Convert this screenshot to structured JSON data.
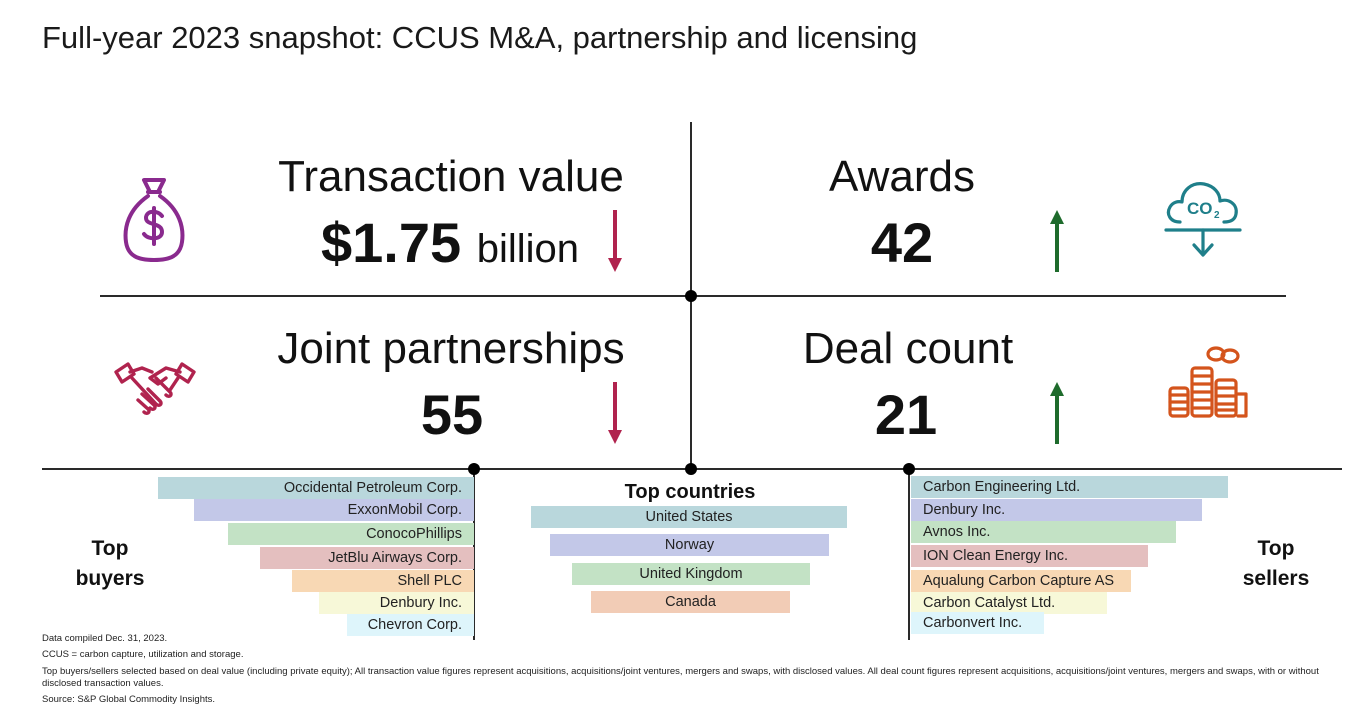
{
  "title": "Full-year 2023 snapshot: CCUS M&A, partnership and licensing",
  "metrics": {
    "transaction_value": {
      "label": "Transaction value",
      "value": "$1.75",
      "unit": "billion",
      "trend": "down",
      "icon": "money-bag-icon"
    },
    "awards": {
      "label": "Awards",
      "value": "42",
      "trend": "up",
      "icon": "co2-cloud-icon"
    },
    "joint_partnerships": {
      "label": "Joint partnerships",
      "value": "55",
      "trend": "down",
      "icon": "handshake-icon"
    },
    "deal_count": {
      "label": "Deal count",
      "value": "21",
      "trend": "up",
      "icon": "coin-stacks-icon"
    }
  },
  "top_buyers": {
    "label_line1": "Top",
    "label_line2": "buyers",
    "items": [
      "Occidental Petroleum Corp.",
      "ExxonMobil Corp.",
      "ConocoPhillips",
      "JetBlu Airways Corp.",
      "Shell PLC",
      "Denbury Inc.",
      "Chevron Corp."
    ]
  },
  "top_countries": {
    "heading": "Top countries",
    "items": [
      "United States",
      "Norway",
      "United Kingdom",
      "Canada"
    ]
  },
  "top_sellers": {
    "label_line1": "Top",
    "label_line2": "sellers",
    "items": [
      "Carbon Engineering Ltd.",
      "Denbury Inc.",
      "Avnos Inc.",
      "ION Clean Energy Inc.",
      "Aqualung Carbon Capture AS",
      "Carbon Catalyst Ltd.",
      "Carbonvert Inc."
    ]
  },
  "colors": {
    "down_arrow": "#b0234e",
    "up_arrow": "#1e6b2c",
    "icon_purple": "#8a2a8e",
    "icon_crimson": "#b0234e",
    "icon_teal": "#1f7f8a",
    "icon_orange": "#d4541c",
    "bar_palette": [
      "#b9d7dc",
      "#c3c8e8",
      "#c3e2c5",
      "#e4bfbf",
      "#f8d8b4",
      "#f7f8d8",
      "#def5fb"
    ]
  },
  "footnotes": {
    "compiled": "Data compiled Dec. 31, 2023.",
    "ccus": "CCUS = carbon capture, utilization and storage.",
    "method": "Top buyers/sellers selected based on deal value (including private equity); All transaction value figures represent acquisitions, acquisitions/joint ventures, mergers and swaps, with disclosed values. All deal count figures represent acquisitions, acquisitions/joint ventures, mergers and swaps, with or without disclosed transaction values.",
    "source": "Source: S&P Global Commodity Insights."
  }
}
